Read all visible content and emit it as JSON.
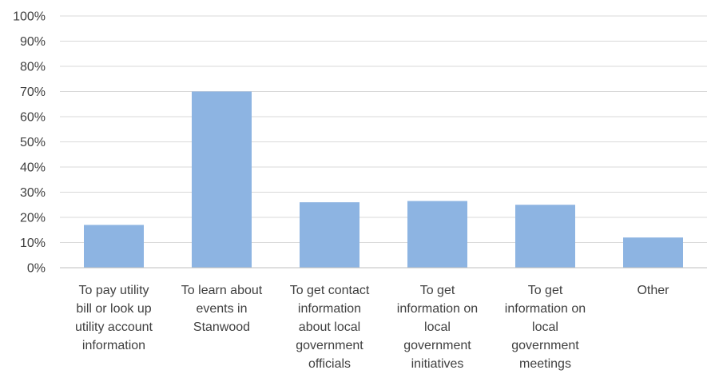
{
  "chart_data": {
    "type": "bar",
    "title": "",
    "xlabel": "",
    "ylabel": "",
    "ylim": [
      0,
      100
    ],
    "y_ticks": [
      "0%",
      "10%",
      "20%",
      "30%",
      "40%",
      "50%",
      "60%",
      "70%",
      "80%",
      "90%",
      "100%"
    ],
    "grid": true,
    "legend": "none",
    "bar_color": "#8db4e2",
    "categories": [
      [
        "To pay utility",
        "bill or look up",
        "utility account",
        "information"
      ],
      [
        "To learn about",
        "events in",
        "Stanwood"
      ],
      [
        "To get contact",
        "information",
        "about local",
        "government",
        "officials"
      ],
      [
        "To get",
        "information on",
        "local",
        "government",
        "initiatives"
      ],
      [
        "To get",
        "information on",
        "local",
        "government",
        "meetings"
      ],
      [
        "Other"
      ]
    ],
    "values": [
      17,
      70,
      26,
      26.5,
      25,
      12
    ]
  }
}
